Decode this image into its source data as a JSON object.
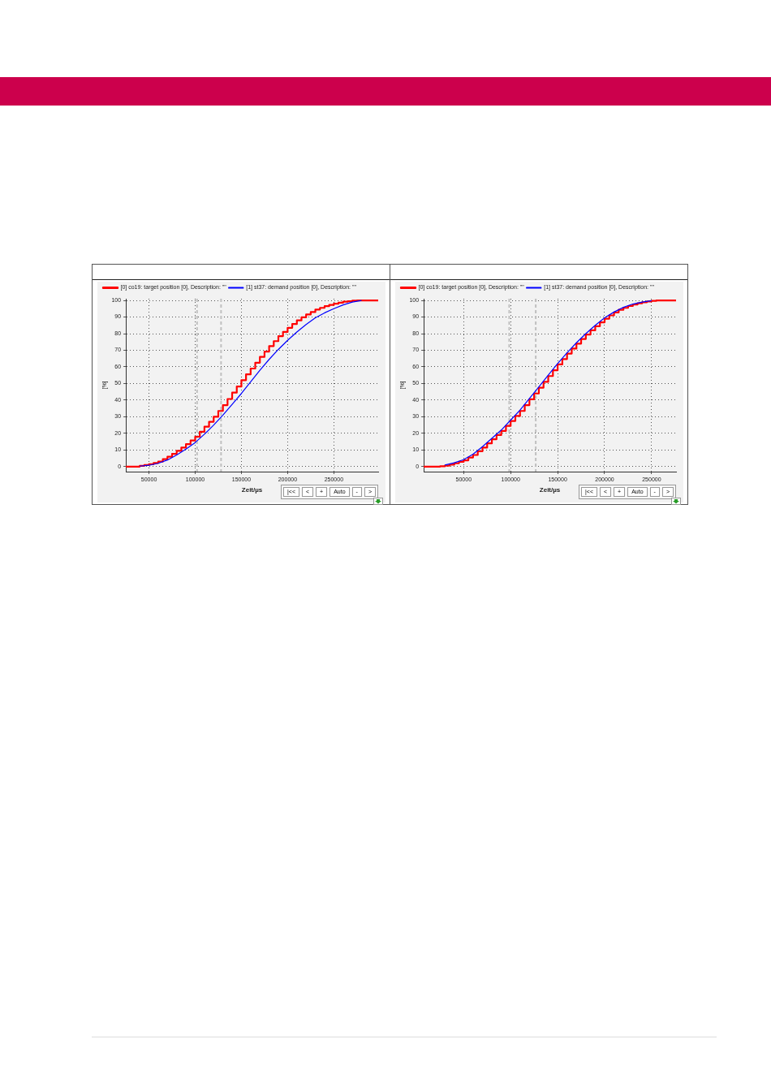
{
  "chart_data": [
    {
      "type": "line",
      "xlabel": "Zeit/µs",
      "ylabel": "[%]",
      "xlim": [
        25000,
        298000
      ],
      "xticks": [
        50000,
        100000,
        150000,
        200000,
        250000
      ],
      "ylim": [
        -3,
        101
      ],
      "yticks": [
        0,
        10,
        20,
        30,
        40,
        50,
        60,
        70,
        80,
        90,
        100
      ],
      "grid": true,
      "legend": "top left",
      "marker": "none",
      "series": [
        {
          "name": "[0] co19: target position [0], Description: \"\"",
          "type": "step",
          "color": "#ff0000",
          "x": [
            25000,
            35000,
            40000,
            45000,
            50000,
            55000,
            60000,
            65000,
            70000,
            75000,
            80000,
            85000,
            90000,
            95000,
            100000,
            105000,
            110000,
            115000,
            120000,
            125000,
            130000,
            135000,
            140000,
            145000,
            150000,
            155000,
            160000,
            165000,
            170000,
            175000,
            180000,
            185000,
            190000,
            195000,
            200000,
            205000,
            210000,
            215000,
            220000,
            225000,
            230000,
            235000,
            240000,
            245000,
            250000,
            255000,
            260000,
            265000,
            270000,
            275000,
            298000
          ],
          "values": [
            0,
            0,
            0.5,
            1,
            1.5,
            2.2,
            3,
            4.5,
            6,
            7.7,
            9.5,
            11.5,
            13.5,
            15.7,
            18,
            21,
            24,
            27,
            30,
            33.5,
            37,
            40.7,
            44.5,
            48.2,
            52,
            55.5,
            59,
            62.5,
            66,
            69.2,
            72.5,
            75.5,
            78.5,
            81,
            83.5,
            85.8,
            88,
            89.8,
            91.5,
            93,
            94.5,
            95.5,
            96.5,
            97.3,
            98,
            98.6,
            99.2,
            99.5,
            99.8,
            100,
            100
          ]
        },
        {
          "name": "[1] st37: demand position [0], Description: \"\"",
          "type": "line",
          "color": "#0000ff",
          "x": [
            40000,
            50000,
            60000,
            70000,
            80000,
            90000,
            100000,
            110000,
            120000,
            130000,
            140000,
            150000,
            160000,
            170000,
            180000,
            190000,
            200000,
            210000,
            220000,
            230000,
            240000,
            250000,
            260000,
            270000,
            280000
          ],
          "values": [
            0.3,
            0.8,
            2,
            4,
            7,
            10.5,
            14.5,
            19.5,
            25,
            31,
            37.5,
            44,
            51,
            58,
            64.5,
            70.5,
            76,
            81,
            85.5,
            89.5,
            92.5,
            95,
            97.3,
            99,
            100
          ]
        }
      ],
      "ref_lines": [
        {
          "axis": "x",
          "value": 102000,
          "color": "#c0c0c0",
          "line_style": "dashed"
        },
        {
          "axis": "x",
          "value": 128000,
          "color": "#c0c0c0",
          "line_style": "dashed"
        }
      ],
      "annotations": [
        "|<<",
        "<",
        "+",
        "Auto",
        "-",
        ">"
      ]
    },
    {
      "type": "line",
      "xlabel": "Zeit/µs",
      "ylabel": "[%]",
      "xlim": [
        7500,
        276000
      ],
      "xticks": [
        50000,
        100000,
        150000,
        200000,
        250000
      ],
      "ylim": [
        -3,
        101
      ],
      "yticks": [
        0,
        10,
        20,
        30,
        40,
        50,
        60,
        70,
        80,
        90,
        100
      ],
      "grid": true,
      "legend": "top left",
      "marker": "none",
      "series": [
        {
          "name": "[0] co19: target position [0], Description: \"\"",
          "type": "step",
          "color": "#ff0000",
          "x": [
            7500,
            20000,
            25000,
            30000,
            35000,
            40000,
            45000,
            50000,
            55000,
            60000,
            65000,
            70000,
            75000,
            80000,
            85000,
            90000,
            95000,
            100000,
            105000,
            110000,
            115000,
            120000,
            125000,
            130000,
            135000,
            140000,
            145000,
            150000,
            155000,
            160000,
            165000,
            170000,
            175000,
            180000,
            185000,
            190000,
            195000,
            200000,
            205000,
            210000,
            215000,
            220000,
            225000,
            230000,
            235000,
            240000,
            245000,
            250000,
            255000,
            276000
          ],
          "values": [
            0,
            0,
            0.2,
            0.6,
            1.2,
            2,
            2.9,
            3.8,
            5.5,
            7,
            9.2,
            11.5,
            14,
            16.5,
            19,
            21.5,
            24.5,
            27.5,
            30.5,
            33.5,
            37,
            40.5,
            44,
            47.5,
            51,
            54.5,
            58,
            61.5,
            64.7,
            68,
            71,
            74,
            76.8,
            79.5,
            82,
            84.5,
            86.8,
            89,
            91,
            92.8,
            94.3,
            95.5,
            96.6,
            97.5,
            98.3,
            98.9,
            99.4,
            99.7,
            100,
            100
          ]
        },
        {
          "name": "[1] st37: demand position [0], Description: \"\"",
          "type": "line",
          "color": "#0000ff",
          "x": [
            30000,
            40000,
            50000,
            60000,
            70000,
            80000,
            90000,
            100000,
            110000,
            120000,
            130000,
            140000,
            150000,
            160000,
            170000,
            180000,
            190000,
            200000,
            210000,
            220000,
            230000,
            240000,
            250000
          ],
          "values": [
            1,
            2.3,
            4.2,
            7.5,
            12,
            17,
            22,
            28,
            34,
            41,
            48,
            55,
            62,
            68.5,
            74.5,
            80,
            85,
            89.5,
            93,
            95.8,
            97.8,
            99,
            99.8
          ]
        }
      ],
      "ref_lines": [
        {
          "axis": "x",
          "value": 98500,
          "color": "#c0c0c0",
          "line_style": "dashed"
        },
        {
          "axis": "x",
          "value": 126700,
          "color": "#c0c0c0",
          "line_style": "dashed"
        }
      ],
      "annotations": [
        "|<<",
        "<",
        "+",
        "Auto",
        "-",
        ">"
      ]
    }
  ]
}
